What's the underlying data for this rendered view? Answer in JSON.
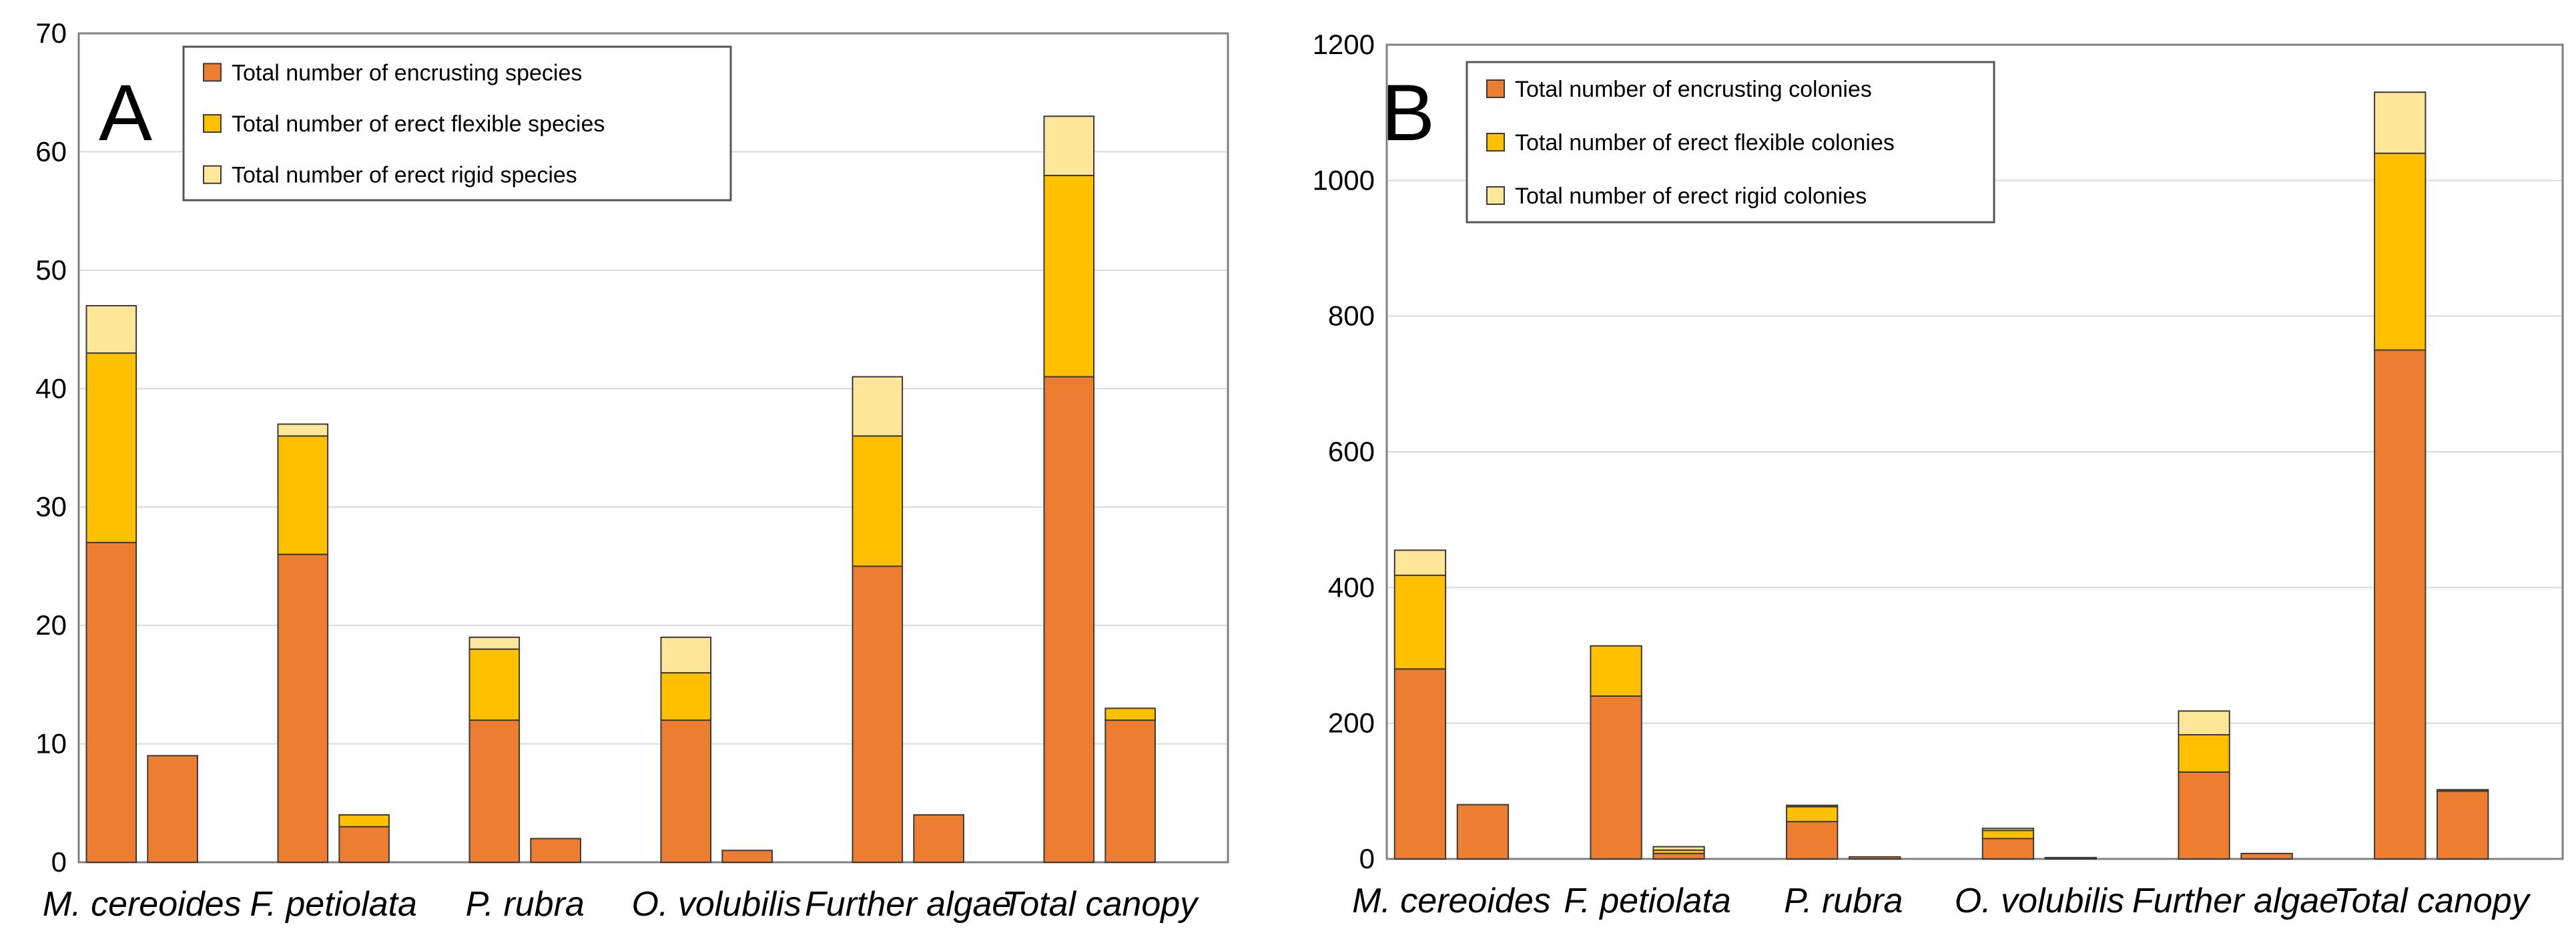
{
  "colors": {
    "encrusting": "#ED7D31",
    "erect_flexible": "#FFC000",
    "erect_rigid": "#FFE699",
    "grid": "#D9D9D9",
    "frame": "#808080"
  },
  "chart_data": [
    {
      "type": "bar",
      "panel_letter": "A",
      "stacked": true,
      "grouped": true,
      "categories": [
        "M. cereoides",
        "F. petiolata",
        "P. rubra",
        "O. volubilis",
        "Further algae",
        "Total canopy"
      ],
      "series": [
        {
          "name": "Total number of encrusting species",
          "color_key": "encrusting",
          "values": [
            [
              27,
              9
            ],
            [
              26,
              3
            ],
            [
              12,
              2
            ],
            [
              12,
              1
            ],
            [
              25,
              4
            ],
            [
              41,
              12
            ]
          ]
        },
        {
          "name": "Total number of erect flexible species",
          "color_key": "erect_flexible",
          "values": [
            [
              16,
              0
            ],
            [
              10,
              1
            ],
            [
              6,
              0
            ],
            [
              4,
              0
            ],
            [
              11,
              0
            ],
            [
              17,
              1
            ]
          ]
        },
        {
          "name": "Total number of erect rigid species",
          "color_key": "erect_rigid",
          "values": [
            [
              4,
              0
            ],
            [
              1,
              0
            ],
            [
              1,
              0
            ],
            [
              3,
              0
            ],
            [
              5,
              0
            ],
            [
              5,
              0
            ]
          ]
        }
      ],
      "ylim": [
        0,
        70
      ],
      "yticks": [
        0,
        10,
        20,
        30,
        40,
        50,
        60,
        70
      ],
      "grid": true,
      "legend_position": "top-left"
    },
    {
      "type": "bar",
      "panel_letter": "B",
      "stacked": true,
      "grouped": true,
      "categories": [
        "M. cereoides",
        "F. petiolata",
        "P. rubra",
        "O. volubilis",
        "Further algae",
        "Total canopy"
      ],
      "series": [
        {
          "name": "Total number of encrusting colonies",
          "color_key": "encrusting",
          "values": [
            [
              280,
              80
            ],
            [
              240,
              8
            ],
            [
              55,
              3
            ],
            [
              30,
              2
            ],
            [
              128,
              8
            ],
            [
              750,
              100
            ]
          ]
        },
        {
          "name": "Total number of erect flexible colonies",
          "color_key": "erect_flexible",
          "values": [
            [
              138,
              0
            ],
            [
              74,
              5
            ],
            [
              22,
              0
            ],
            [
              12,
              0
            ],
            [
              55,
              0
            ],
            [
              290,
              2
            ]
          ]
        },
        {
          "name": "Total number of erect rigid colonies",
          "color_key": "erect_rigid",
          "values": [
            [
              37,
              0
            ],
            [
              0,
              5
            ],
            [
              2,
              0
            ],
            [
              3,
              0
            ],
            [
              35,
              0
            ],
            [
              90,
              0
            ]
          ]
        }
      ],
      "ylim": [
        0,
        1200
      ],
      "yticks": [
        0,
        200,
        400,
        600,
        800,
        1000,
        1200
      ],
      "grid": true,
      "legend_position": "top-left"
    }
  ]
}
